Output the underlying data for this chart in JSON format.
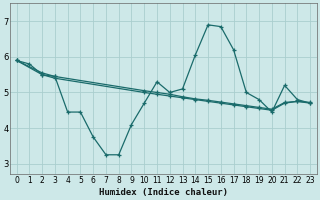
{
  "xlabel": "Humidex (Indice chaleur)",
  "ylabel": "",
  "background_color": "#cde8e8",
  "grid_color": "#aacece",
  "line_color": "#1a6b6b",
  "xlim": [
    -0.5,
    23.5
  ],
  "ylim": [
    2.7,
    7.5
  ],
  "xticks": [
    0,
    1,
    2,
    3,
    4,
    5,
    6,
    7,
    8,
    9,
    10,
    11,
    12,
    13,
    14,
    15,
    16,
    17,
    18,
    19,
    20,
    21,
    22,
    23
  ],
  "yticks": [
    3,
    4,
    5,
    6,
    7
  ],
  "series1_x": [
    0,
    1,
    2,
    3,
    4,
    5,
    6,
    7,
    8,
    9,
    10,
    11,
    12,
    13,
    14,
    15,
    16,
    17,
    18,
    19,
    20,
    21,
    22,
    23
  ],
  "series1_y": [
    5.9,
    5.8,
    5.5,
    5.45,
    4.45,
    4.45,
    3.75,
    3.25,
    3.25,
    4.1,
    4.7,
    5.3,
    5.0,
    5.1,
    6.05,
    6.9,
    6.85,
    6.2,
    5.0,
    4.8,
    4.45,
    5.2,
    4.8,
    4.7
  ],
  "series2_x": [
    0,
    2,
    3,
    10,
    11,
    12,
    13,
    14,
    15,
    16,
    17,
    18,
    19,
    20,
    21,
    22,
    23
  ],
  "series2_y": [
    5.9,
    5.5,
    5.4,
    5.0,
    4.95,
    4.9,
    4.85,
    4.8,
    4.75,
    4.7,
    4.65,
    4.6,
    4.55,
    4.5,
    4.7,
    4.75,
    4.7
  ],
  "series3_x": [
    0,
    2,
    3,
    10,
    11,
    12,
    13,
    14,
    15,
    16,
    17,
    18,
    19,
    20,
    21,
    22,
    23
  ],
  "series3_y": [
    5.9,
    5.55,
    5.45,
    5.05,
    5.0,
    4.95,
    4.88,
    4.82,
    4.78,
    4.73,
    4.68,
    4.63,
    4.58,
    4.53,
    4.72,
    4.75,
    4.72
  ]
}
